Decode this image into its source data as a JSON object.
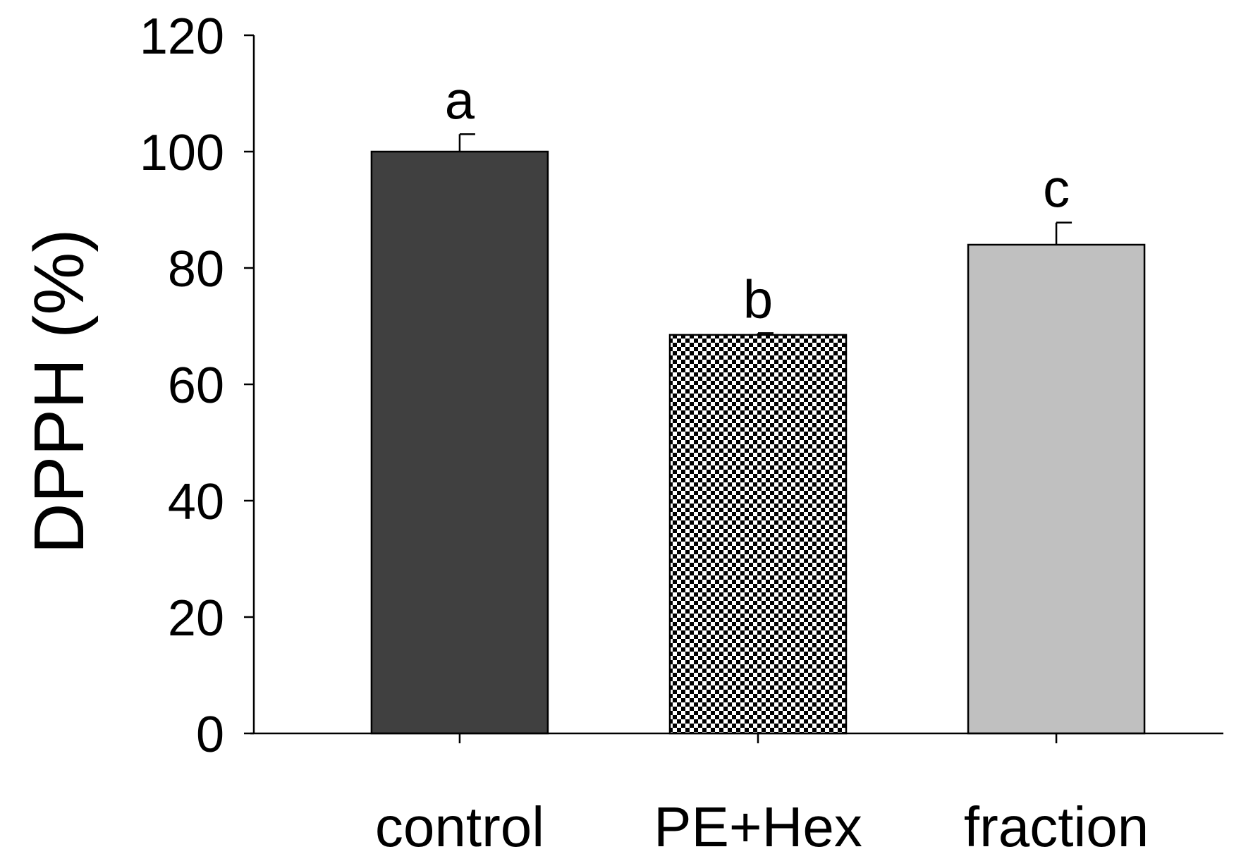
{
  "chart_data": {
    "type": "bar",
    "title": "",
    "xlabel": "",
    "ylabel": "DPPH (%)",
    "ylim": [
      0,
      120
    ],
    "yticks": [
      0,
      20,
      40,
      60,
      80,
      100,
      120
    ],
    "grid": false,
    "categories": [
      "control",
      "PE+Hex",
      "fraction"
    ],
    "values": [
      100,
      68.5,
      84
    ],
    "errors": [
      3,
      0.3,
      3.8
    ],
    "significance_labels": [
      "a",
      "b",
      "c"
    ],
    "bar_styles": [
      {
        "fill": "#404040",
        "pattern": "solid"
      },
      {
        "fill": "#ffffff",
        "pattern": "checker"
      },
      {
        "fill": "#c0c0c0",
        "pattern": "solid"
      }
    ],
    "colors": {
      "axis": "#000000",
      "bar_edge": "#000000",
      "checker_dark": "#000000"
    }
  }
}
